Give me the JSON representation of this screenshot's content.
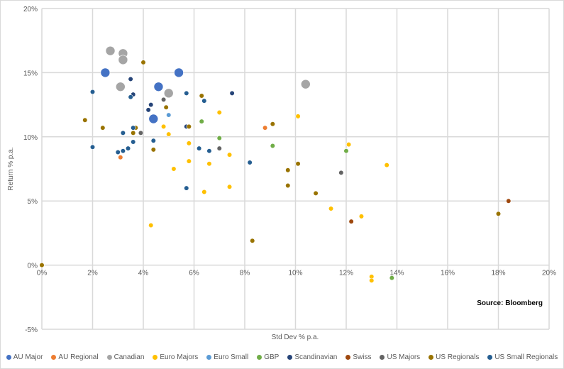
{
  "chart_data": {
    "type": "scatter",
    "title": "",
    "xlabel": "Std Dev % p.a.",
    "ylabel": "Return % p.a.",
    "xlim": [
      0,
      20
    ],
    "ylim": [
      -5,
      20
    ],
    "xticks": [
      "0%",
      "2%",
      "4%",
      "6%",
      "8%",
      "10%",
      "12%",
      "14%",
      "16%",
      "18%",
      "20%"
    ],
    "yticks": [
      "-5%",
      "0%",
      "5%",
      "10%",
      "15%",
      "20%"
    ],
    "grid": true,
    "legend_position": "bottom",
    "annotation": "Source: Bloomberg",
    "series": [
      {
        "name": "AU Major",
        "color": "#4472C4",
        "large": true,
        "points": [
          [
            2.5,
            15.0
          ],
          [
            5.4,
            15.0
          ],
          [
            4.6,
            13.9
          ],
          [
            4.4,
            11.4
          ]
        ]
      },
      {
        "name": "AU Regional",
        "color": "#ED7D31",
        "points": [
          [
            3.1,
            8.4
          ],
          [
            8.8,
            10.7
          ]
        ]
      },
      {
        "name": "Canadian",
        "color": "#A5A5A5",
        "large": true,
        "points": [
          [
            2.7,
            16.7
          ],
          [
            3.2,
            16.5
          ],
          [
            3.2,
            16.0
          ],
          [
            3.1,
            13.9
          ],
          [
            5.0,
            13.4
          ],
          [
            10.4,
            14.1
          ]
        ]
      },
      {
        "name": "Euro Majors",
        "color": "#FFC000",
        "points": [
          [
            4.8,
            10.8
          ],
          [
            5.0,
            10.2
          ],
          [
            5.2,
            7.5
          ],
          [
            5.8,
            9.5
          ],
          [
            5.8,
            8.1
          ],
          [
            7.0,
            11.9
          ],
          [
            6.6,
            7.9
          ],
          [
            6.4,
            5.7
          ],
          [
            7.4,
            8.6
          ],
          [
            7.4,
            6.1
          ],
          [
            4.3,
            3.1
          ],
          [
            10.1,
            11.6
          ],
          [
            12.1,
            9.4
          ],
          [
            13.6,
            7.8
          ],
          [
            11.4,
            4.4
          ],
          [
            12.6,
            3.8
          ],
          [
            13.0,
            -0.9
          ],
          [
            13.0,
            -1.2
          ]
        ]
      },
      {
        "name": "Euro Small",
        "color": "#5B9BD5",
        "points": [
          [
            5.0,
            11.7
          ]
        ]
      },
      {
        "name": "GBP",
        "color": "#70AD47",
        "points": [
          [
            6.3,
            11.2
          ],
          [
            7.0,
            9.9
          ],
          [
            9.1,
            9.3
          ],
          [
            12.0,
            8.9
          ],
          [
            13.8,
            -1.0
          ]
        ]
      },
      {
        "name": "Scandinavian",
        "color": "#264478",
        "points": [
          [
            3.5,
            14.5
          ],
          [
            3.6,
            13.3
          ],
          [
            4.3,
            12.5
          ],
          [
            4.2,
            12.1
          ],
          [
            5.7,
            10.8
          ],
          [
            7.5,
            13.4
          ]
        ]
      },
      {
        "name": "Swiss",
        "color": "#9E480E",
        "points": [
          [
            18.4,
            5.0
          ],
          [
            12.2,
            3.4
          ]
        ]
      },
      {
        "name": "US Majors",
        "color": "#636363",
        "points": [
          [
            4.8,
            12.9
          ],
          [
            3.9,
            10.3
          ],
          [
            7.0,
            9.1
          ],
          [
            11.8,
            7.2
          ]
        ]
      },
      {
        "name": "US Regionals",
        "color": "#997300",
        "points": [
          [
            4.0,
            15.8
          ],
          [
            1.7,
            11.3
          ],
          [
            2.4,
            10.7
          ],
          [
            3.6,
            10.3
          ],
          [
            3.7,
            10.7
          ],
          [
            4.9,
            12.3
          ],
          [
            4.4,
            9.0
          ],
          [
            5.8,
            10.8
          ],
          [
            6.3,
            13.2
          ],
          [
            9.1,
            11.0
          ],
          [
            9.7,
            7.4
          ],
          [
            10.1,
            7.9
          ],
          [
            9.7,
            6.2
          ],
          [
            10.8,
            5.6
          ],
          [
            8.3,
            1.9
          ],
          [
            18.0,
            4.0
          ],
          [
            0,
            0
          ]
        ]
      },
      {
        "name": "US Small Regionals",
        "color": "#255E91",
        "points": [
          [
            2.0,
            13.5
          ],
          [
            2.0,
            9.2
          ],
          [
            3.0,
            8.8
          ],
          [
            3.2,
            8.9
          ],
          [
            3.4,
            9.1
          ],
          [
            3.6,
            9.6
          ],
          [
            3.6,
            10.7
          ],
          [
            3.2,
            10.3
          ],
          [
            4.4,
            9.7
          ],
          [
            5.7,
            13.4
          ],
          [
            6.4,
            12.8
          ],
          [
            6.2,
            9.1
          ],
          [
            6.6,
            8.9
          ],
          [
            5.7,
            6.0
          ],
          [
            8.2,
            8.0
          ],
          [
            3.5,
            13.1
          ]
        ]
      }
    ]
  }
}
